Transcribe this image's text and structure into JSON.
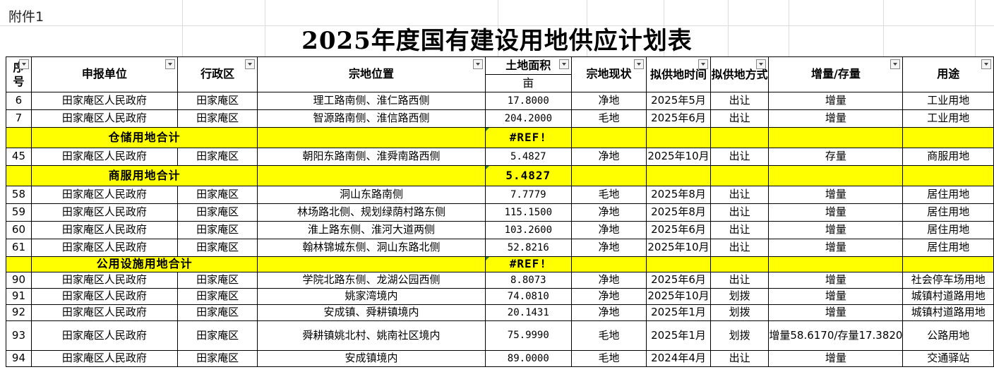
{
  "attachment_label": "附件1",
  "title": "2025年度国有建设用地供应计划表",
  "headers": {
    "seq": "序号",
    "unit": "申报单位",
    "district": "行政区",
    "location": "宗地位置",
    "area": "土地面积",
    "area_unit": "亩",
    "status": "宗地现状",
    "supply_time": "拟供地时间",
    "supply_method": "拟供地方式",
    "increment": "增量/存量",
    "use": "用途"
  },
  "header_display": {
    "seq_a": "序",
    "seq_b": "号",
    "supply_time": "拟供地时间",
    "supply_method": "拟供地方式"
  },
  "rows": [
    {
      "type": "data",
      "seq": "6",
      "unit": "田家庵区人民政府",
      "district": "田家庵区",
      "location": "理工路南侧、淮仁路西侧",
      "area": "17.8000",
      "status": "净地",
      "time": "2025年5月",
      "method": "出让",
      "inc": "增量",
      "use": "工业用地"
    },
    {
      "type": "data",
      "seq": "7",
      "unit": "田家庵区人民政府",
      "district": "田家庵区",
      "location": "智源路南侧、淮信路西侧",
      "area": "204.2000",
      "status": "毛地",
      "time": "2025年6月",
      "method": "出让",
      "inc": "增量",
      "use": "工业用地"
    },
    {
      "type": "sum",
      "label": "仓储用地合计",
      "value": "#REF!"
    },
    {
      "type": "data",
      "seq": "45",
      "unit": "田家庵区人民政府",
      "district": "田家庵区",
      "location": "朝阳东路南侧、淮舜南路西侧",
      "area": "5.4827",
      "status": "净地",
      "time": "2025年10月",
      "method": "出让",
      "inc": "存量",
      "use": "商服用地"
    },
    {
      "type": "sum",
      "label": "商服用地合计",
      "value": "5.4827"
    },
    {
      "type": "data",
      "seq": "58",
      "unit": "田家庵区人民政府",
      "district": "田家庵区",
      "location": "洞山东路南侧",
      "area": "7.7779",
      "status": "毛地",
      "time": "2025年8月",
      "method": "出让",
      "inc": "增量",
      "use": "居住用地"
    },
    {
      "type": "data",
      "seq": "59",
      "unit": "田家庵区人民政府",
      "district": "田家庵区",
      "location": "林场路北侧、规划绿荫村路东侧",
      "area": "115.1500",
      "status": "净地",
      "time": "2025年8月",
      "method": "出让",
      "inc": "增量",
      "use": "居住用地"
    },
    {
      "type": "data",
      "seq": "60",
      "unit": "田家庵区人民政府",
      "district": "田家庵区",
      "location": "淮上路东侧、淮河大道两侧",
      "area": "103.2600",
      "status": "净地",
      "time": "2025年6月",
      "method": "出让",
      "inc": "增量",
      "use": "居住用地"
    },
    {
      "type": "data",
      "seq": "61",
      "unit": "田家庵区人民政府",
      "district": "田家庵区",
      "location": "翰林锦城东侧、洞山东路北侧",
      "area": "52.8216",
      "status": "净地",
      "time": "2025年10月",
      "method": "出让",
      "inc": "增量",
      "use": "居住用地"
    },
    {
      "type": "sum",
      "label": "公用设施用地合计",
      "value": "#REF!"
    },
    {
      "type": "data",
      "seq": "90",
      "unit": "田家庵区人民政府",
      "district": "田家庵区",
      "location": "学院北路东侧、龙湖公园西侧",
      "area": "8.8073",
      "status": "净地",
      "time": "2025年6月",
      "method": "出让",
      "inc": "增量",
      "use": "社会停车场用地"
    },
    {
      "type": "data",
      "seq": "91",
      "unit": "田家庵区人民政府",
      "district": "田家庵区",
      "location": "姚家湾境内",
      "area": "74.0810",
      "status": "净地",
      "time": "2025年10月",
      "method": "划拨",
      "inc": "增量",
      "use": "城镇村道路用地"
    },
    {
      "type": "data",
      "seq": "92",
      "unit": "田家庵区人民政府",
      "district": "田家庵区",
      "location": "安成镇、舜耕镇境内",
      "area": "20.1431",
      "status": "净地",
      "time": "2025年1月",
      "method": "划拨",
      "inc": "增量",
      "use": "城镇村道路用地"
    },
    {
      "type": "data",
      "seq": "93",
      "unit": "田家庵区人民政府",
      "district": "田家庵区",
      "location": "舜耕镇姚北村、姚南社区境内",
      "area": "75.9990",
      "status": "毛地",
      "time": "2025年1月",
      "method": "划拨",
      "inc": "增量58.6170/存量17.3820",
      "use": "公路用地"
    },
    {
      "type": "data",
      "seq": "94",
      "unit": "田家庵区人民政府",
      "district": "田家庵区",
      "location": "安成镇境内",
      "area": "89.0000",
      "status": "毛地",
      "time": "2024年4月",
      "method": "出让",
      "inc": "增量",
      "use": "交通驿站"
    }
  ]
}
